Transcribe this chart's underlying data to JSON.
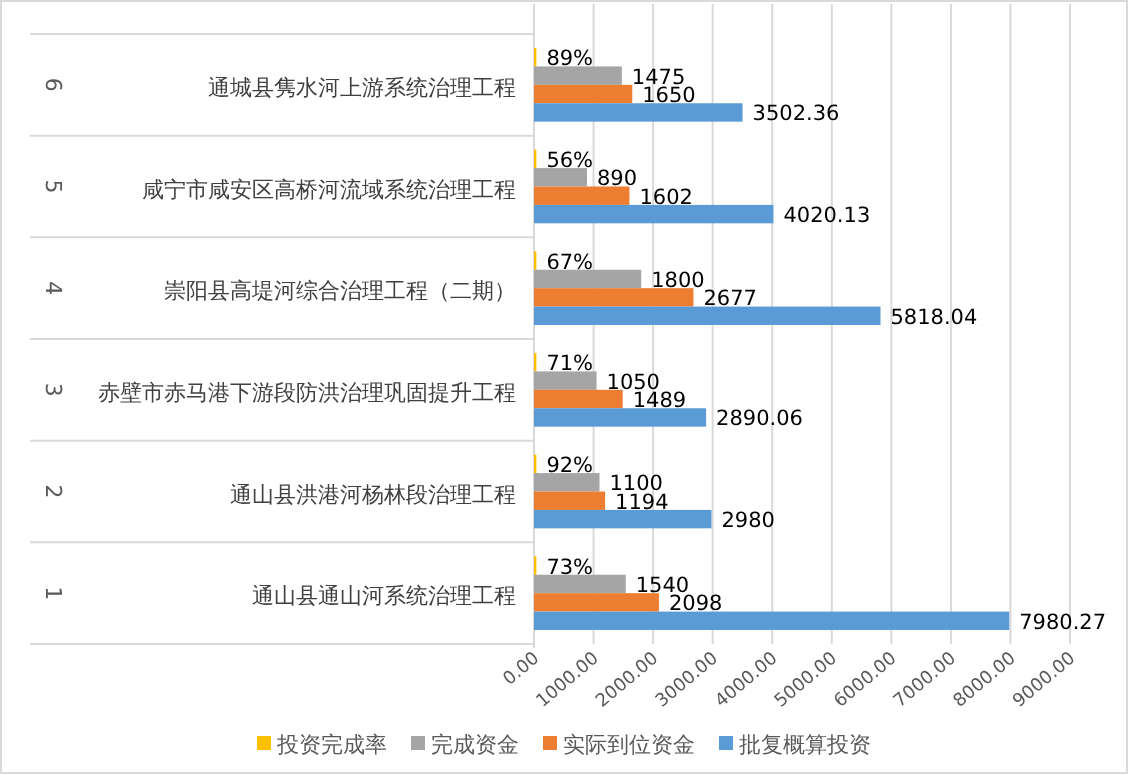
{
  "chart_data": {
    "type": "bar",
    "orientation": "horizontal",
    "categories": [
      "通城县隽水河上游系统治理工程",
      "咸宁市咸安区高桥河流域系统治理工程",
      "崇阳县高堤河综合治理工程（二期）",
      "赤壁市赤马港下游段防洪治理巩固提升工程",
      "通山县洪港河杨林段治理工程",
      "通山县通山河系统治理工程"
    ],
    "annotations": [
      "6",
      "5",
      "4",
      "3",
      "2",
      "1"
    ],
    "series": [
      {
        "name": "投资完成率",
        "color": "#ffc000",
        "values": [
          0.89,
          0.56,
          0.67,
          0.71,
          0.92,
          0.73
        ],
        "value_labels": [
          "89%",
          "56%",
          "67%",
          "71%",
          "92%",
          "73%"
        ]
      },
      {
        "name": "完成资金",
        "color": "#a5a5a5",
        "values": [
          1475,
          890,
          1800,
          1050,
          1100,
          1540
        ],
        "value_labels": [
          "1475",
          "890",
          "1800",
          "1050",
          "1100",
          "1540"
        ]
      },
      {
        "name": "实际到位资金",
        "color": "#ed7d31",
        "values": [
          1650,
          1602,
          2677,
          1489,
          1194,
          2098
        ],
        "value_labels": [
          "1650",
          "1602",
          "2677",
          "1489",
          "1194",
          "2098"
        ]
      },
      {
        "name": "批复概算投资",
        "color": "#5b9bd5",
        "values": [
          3502.36,
          4020.13,
          5818.04,
          2890.06,
          2980,
          7980.27
        ],
        "value_labels": [
          "3502.36",
          "4020.13",
          "5818.04",
          "2890.06",
          "2980",
          "7980.27"
        ]
      }
    ],
    "xlim": [
      0,
      9000
    ],
    "xticks": [
      {
        "value": 0,
        "label": "0.00"
      },
      {
        "value": 1000,
        "label": "1000.00"
      },
      {
        "value": 2000,
        "label": "2000.00"
      },
      {
        "value": 3000,
        "label": "3000.00"
      },
      {
        "value": 4000,
        "label": "4000.00"
      },
      {
        "value": 5000,
        "label": "5000.00"
      },
      {
        "value": 6000,
        "label": "6000.00"
      },
      {
        "value": 7000,
        "label": "7000.00"
      },
      {
        "value": 8000,
        "label": "8000.00"
      },
      {
        "value": 9000,
        "label": "9000.00"
      }
    ],
    "grid": "x",
    "legend": "bottom"
  }
}
